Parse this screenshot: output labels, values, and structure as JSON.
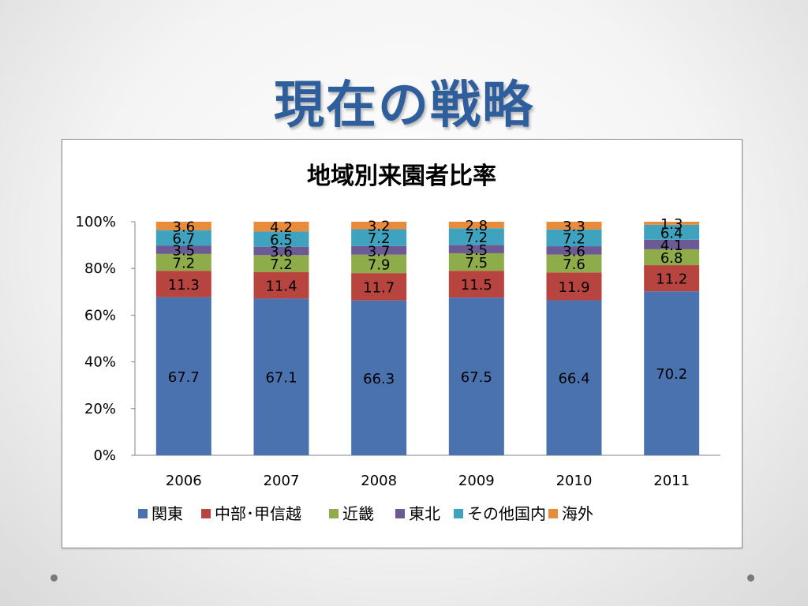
{
  "slide": {
    "title": "現在の戦略"
  },
  "chart_data": {
    "type": "bar",
    "stacked": true,
    "normalized": true,
    "title": "地域別来園者比率",
    "categories": [
      "2006",
      "2007",
      "2008",
      "2009",
      "2010",
      "2011"
    ],
    "y_ticks": [
      "0%",
      "20%",
      "40%",
      "60%",
      "80%",
      "100%"
    ],
    "ylim": [
      0,
      100
    ],
    "legend_position": "bottom",
    "series": [
      {
        "name": "関東",
        "color": "#4a72ae",
        "values": [
          67.7,
          67.1,
          66.3,
          67.5,
          66.4,
          70.2
        ],
        "labels": [
          "67.7",
          "67.1",
          "66.3",
          "67.5",
          "66.4",
          "70.2"
        ]
      },
      {
        "name": "中部･甲信越",
        "color": "#b84440",
        "values": [
          11.3,
          11.4,
          11.7,
          11.5,
          11.9,
          11.2
        ],
        "labels": [
          "11.3",
          "11.4",
          "11.7",
          "11.5",
          "11.9",
          "11.2"
        ]
      },
      {
        "name": "近畿",
        "color": "#8ead4a",
        "values": [
          7.2,
          7.2,
          7.9,
          7.5,
          7.6,
          6.8
        ],
        "labels": [
          "7.2",
          "7.2",
          "7.9",
          "7.5",
          "7.6",
          "6.8"
        ]
      },
      {
        "name": "東北",
        "color": "#6b5a94",
        "values": [
          3.5,
          3.6,
          3.7,
          3.5,
          3.6,
          4.1
        ],
        "labels": [
          "3.5",
          "3.6",
          "3.7",
          "3.5",
          "3.6",
          "4.1"
        ]
      },
      {
        "name": "その他国内",
        "color": "#3fa3c0",
        "values": [
          6.7,
          6.5,
          7.2,
          7.2,
          7.2,
          6.4
        ],
        "labels": [
          "6.7",
          "6.5",
          "7.2",
          "7.2",
          "7.2",
          "6.4"
        ]
      },
      {
        "name": "海外",
        "color": "#e88b3a",
        "values": [
          3.6,
          4.2,
          3.2,
          2.8,
          3.3,
          1.3
        ],
        "labels": [
          "3.6",
          "4.2",
          "3.2",
          "2.8",
          "3.3",
          "1.3"
        ]
      }
    ]
  }
}
